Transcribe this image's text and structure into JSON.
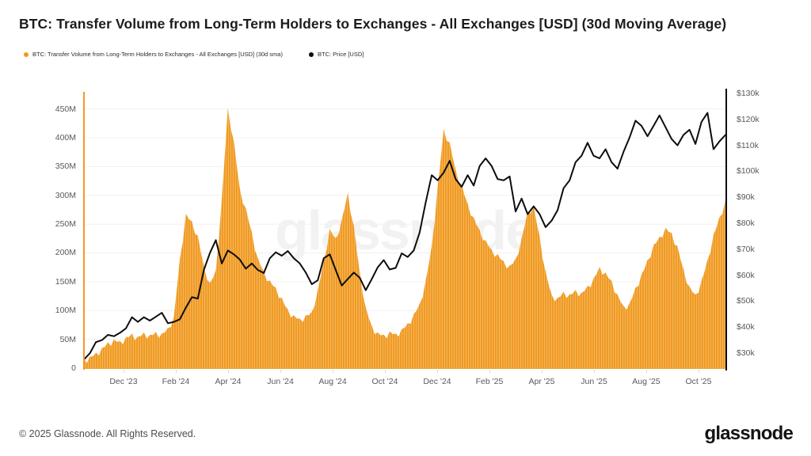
{
  "title": "BTC: Transfer Volume from Long-Term Holders to Exchanges - All Exchanges [USD] (30d Moving Average)",
  "legend": [
    {
      "label": "BTC: Transfer Volume from Long-Term Holders to Exchanges - All Exchanges [USD] (30d sma)",
      "color": "#f7941e"
    },
    {
      "label": "BTC: Price [USD]",
      "color": "#0d0d0d"
    }
  ],
  "watermark": "glassnode",
  "footer": {
    "copyright": "© 2025 Glassnode. All Rights Reserved.",
    "brand": "glassnode"
  },
  "chart_data": {
    "type": "area",
    "x_start": "2023-10-13",
    "x_end": "2025-10-31",
    "x_step_days": 7,
    "x_ticks": [
      {
        "label": "Dec '23",
        "pos": 0.0617
      },
      {
        "label": "Feb '24",
        "pos": 0.1432
      },
      {
        "label": "Apr '24",
        "pos": 0.2247
      },
      {
        "label": "Jun '24",
        "pos": 0.3062
      },
      {
        "label": "Aug '24",
        "pos": 0.3877
      },
      {
        "label": "Oct '24",
        "pos": 0.4691
      },
      {
        "label": "Dec '24",
        "pos": 0.5506
      },
      {
        "label": "Feb '25",
        "pos": 0.6321
      },
      {
        "label": "Apr '25",
        "pos": 0.7136
      },
      {
        "label": "Jun '25",
        "pos": 0.7951
      },
      {
        "label": "Aug '25",
        "pos": 0.8765
      },
      {
        "label": "Oct '25",
        "pos": 0.958
      }
    ],
    "left_axis": {
      "unit": "USD millions",
      "top_value": 481,
      "bottom_value": 0,
      "ticks": [
        {
          "label": "450M",
          "v": 450
        },
        {
          "label": "400M",
          "v": 400
        },
        {
          "label": "350M",
          "v": 350
        },
        {
          "label": "300M",
          "v": 300
        },
        {
          "label": "250M",
          "v": 250
        },
        {
          "label": "200M",
          "v": 200
        },
        {
          "label": "150M",
          "v": 150
        },
        {
          "label": "100M",
          "v": 100
        },
        {
          "label": "50M",
          "v": 50
        },
        {
          "label": "0",
          "v": 0
        }
      ]
    },
    "right_axis": {
      "unit": "USD thousands",
      "top_value": 130.9,
      "bottom_value": 24.2,
      "ticks": [
        {
          "label": "$130k",
          "v": 130
        },
        {
          "label": "$120k",
          "v": 120
        },
        {
          "label": "$110k",
          "v": 110
        },
        {
          "label": "$100k",
          "v": 100
        },
        {
          "label": "$90k",
          "v": 90
        },
        {
          "label": "$80k",
          "v": 80
        },
        {
          "label": "$70k",
          "v": 70
        },
        {
          "label": "$60k",
          "v": 60
        },
        {
          "label": "$50k",
          "v": 50
        },
        {
          "label": "$40k",
          "v": 40
        },
        {
          "label": "$30k",
          "v": 30
        }
      ]
    },
    "grid": {
      "horizontal": true,
      "color": "#f1f1f1"
    },
    "series": [
      {
        "name": "BTC: Transfer Volume from Long-Term Holders to Exchanges - All Exchanges [USD] (30d sma)",
        "type": "area",
        "axis": "left",
        "color": "#f0991f",
        "values_unit": "M USD",
        "values": [
          16,
          20,
          27,
          35,
          45,
          50,
          47,
          54,
          60,
          55,
          62,
          58,
          63,
          60,
          70,
          90,
          190,
          268,
          255,
          230,
          178,
          148,
          170,
          295,
          452,
          395,
          312,
          278,
          236,
          192,
          168,
          152,
          140,
          122,
          102,
          92,
          86,
          92,
          98,
          136,
          188,
          242,
          226,
          258,
          305,
          248,
          168,
          106,
          74,
          62,
          58,
          64,
          60,
          68,
          78,
          94,
          112,
          152,
          212,
          315,
          415,
          392,
          345,
          318,
          286,
          262,
          240,
          222,
          206,
          198,
          186,
          178,
          190,
          226,
          272,
          282,
          230,
          168,
          128,
          122,
          133,
          128,
          136,
          131,
          143,
          156,
          176,
          166,
          152,
          128,
          108,
          113,
          140,
          163,
          188,
          214,
          228,
          244,
          235,
          212,
          172,
          142,
          128,
          152,
          188,
          232,
          262,
          292
        ]
      },
      {
        "name": "BTC: Price [USD]",
        "type": "line",
        "axis": "right",
        "color": "#0d0d0d",
        "values_unit": "k USD",
        "values": [
          27.5,
          30,
          34.2,
          35,
          37,
          36.5,
          37.8,
          39.5,
          43.8,
          42,
          43.8,
          42.5,
          44,
          45.5,
          41.5,
          42,
          43,
          47.5,
          51.5,
          51,
          62,
          68.5,
          73.5,
          64.5,
          69.5,
          68,
          66,
          62.5,
          64.5,
          62,
          60.8,
          66.5,
          68.8,
          67.5,
          69.3,
          66.5,
          64.5,
          61,
          56.5,
          58,
          66.5,
          68,
          62,
          56,
          58.5,
          61,
          59,
          54.2,
          58.5,
          63,
          65.8,
          62.2,
          62.8,
          68.4,
          67,
          69.5,
          76.5,
          88,
          98.5,
          96.5,
          99.5,
          104,
          97,
          94,
          98.5,
          94.5,
          102,
          105,
          102,
          97,
          96.5,
          98,
          84.5,
          89.5,
          83.5,
          86.5,
          83.5,
          78.5,
          81,
          85,
          93.5,
          96.5,
          103.5,
          106,
          111,
          106,
          105,
          108.5,
          103.5,
          101,
          107.5,
          113,
          119.5,
          117.5,
          113.5,
          117.5,
          121.5,
          117,
          112.5,
          110,
          114,
          116,
          110.5,
          119,
          122.5,
          108.5,
          111.5,
          114
        ]
      }
    ]
  }
}
